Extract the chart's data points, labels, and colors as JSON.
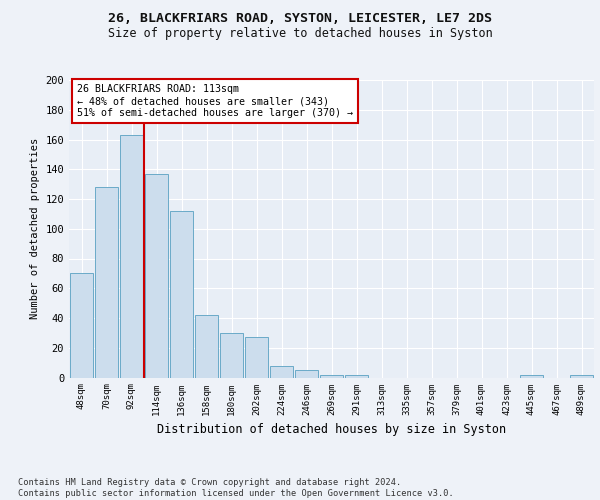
{
  "title1": "26, BLACKFRIARS ROAD, SYSTON, LEICESTER, LE7 2DS",
  "title2": "Size of property relative to detached houses in Syston",
  "xlabel": "Distribution of detached houses by size in Syston",
  "ylabel": "Number of detached properties",
  "bar_color": "#ccdded",
  "bar_edge_color": "#6aaac8",
  "vline_color": "#cc0000",
  "vline_x": 2.5,
  "categories": [
    "48sqm",
    "70sqm",
    "92sqm",
    "114sqm",
    "136sqm",
    "158sqm",
    "180sqm",
    "202sqm",
    "224sqm",
    "246sqm",
    "269sqm",
    "291sqm",
    "313sqm",
    "335sqm",
    "357sqm",
    "379sqm",
    "401sqm",
    "423sqm",
    "445sqm",
    "467sqm",
    "489sqm"
  ],
  "values": [
    70,
    128,
    163,
    137,
    112,
    42,
    30,
    27,
    8,
    5,
    2,
    2,
    0,
    0,
    0,
    0,
    0,
    0,
    2,
    0,
    2
  ],
  "ylim": [
    0,
    200
  ],
  "yticks": [
    0,
    20,
    40,
    60,
    80,
    100,
    120,
    140,
    160,
    180,
    200
  ],
  "annotation_text": "26 BLACKFRIARS ROAD: 113sqm\n← 48% of detached houses are smaller (343)\n51% of semi-detached houses are larger (370) →",
  "footnote": "Contains HM Land Registry data © Crown copyright and database right 2024.\nContains public sector information licensed under the Open Government Licence v3.0.",
  "bg_color": "#eef2f8",
  "plot_bg_color": "#e8eef6"
}
